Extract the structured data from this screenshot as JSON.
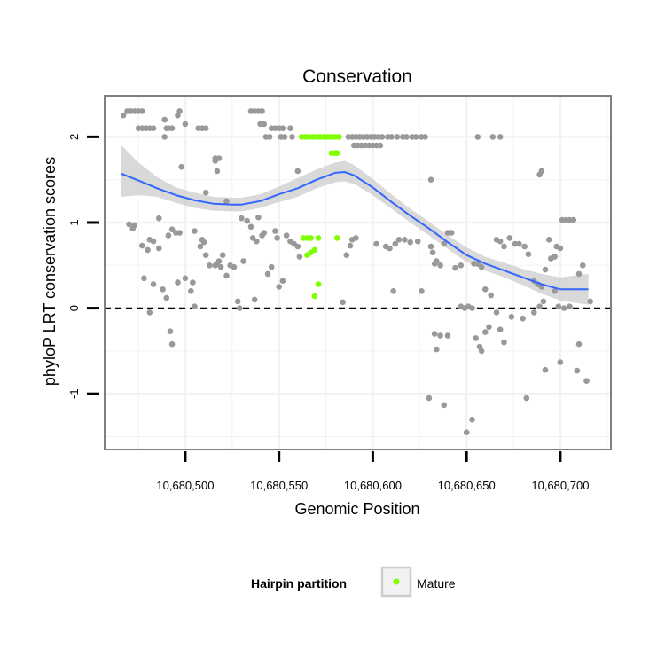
{
  "chart_data": {
    "type": "scatter",
    "title": "Conservation",
    "xlabel": "Genomic Position",
    "ylabel": "phyloP LRT conservation scores",
    "xlim": [
      10680457,
      10680727
    ],
    "ylim": [
      -1.65,
      2.48
    ],
    "x_ticks": [
      10680500,
      10680550,
      10680600,
      10680650,
      10680700
    ],
    "x_tick_labels": [
      "10,680,500",
      "10,680,550",
      "10,680,600",
      "10,680,650",
      "10,680,700"
    ],
    "y_ticks": [
      -1,
      0,
      1,
      2
    ],
    "y_tick_labels": [
      "-1",
      "0",
      "1",
      "2"
    ],
    "reference_line": {
      "y": 0,
      "style": "dashed"
    },
    "grid": true,
    "colors": {
      "other": "#999999",
      "mature": "#7fff00",
      "smooth": "#3366ff",
      "ribbon": "#cccccc",
      "panel_border": "#7f7f7f",
      "grid": "#f2f2f2"
    },
    "legend": {
      "position": "bottom",
      "title": "Hairpin partition",
      "entries": [
        {
          "label": "Mature",
          "color": "#7fff00"
        }
      ]
    },
    "series": [
      {
        "partition": "Other",
        "color": "#999999",
        "points": [
          [
            10680467,
            2.25
          ],
          [
            10680469,
            2.3
          ],
          [
            10680471,
            2.3
          ],
          [
            10680473,
            2.3
          ],
          [
            10680475,
            2.3
          ],
          [
            10680477,
            2.3
          ],
          [
            10680475,
            2.1
          ],
          [
            10680477,
            2.1
          ],
          [
            10680479,
            2.1
          ],
          [
            10680481,
            2.1
          ],
          [
            10680483,
            2.1
          ],
          [
            10680489,
            2.2
          ],
          [
            10680490,
            2.1
          ],
          [
            10680491,
            2.1
          ],
          [
            10680493,
            2.1
          ],
          [
            10680496,
            2.25
          ],
          [
            10680497,
            2.3
          ],
          [
            10680500,
            2.15
          ],
          [
            10680507,
            2.1
          ],
          [
            10680509,
            2.1
          ],
          [
            10680511,
            2.1
          ],
          [
            10680489,
            2.0
          ],
          [
            10680516,
            1.75
          ],
          [
            10680518,
            1.75
          ],
          [
            10680517,
            1.6
          ],
          [
            10680511,
            1.35
          ],
          [
            10680498,
            1.65
          ],
          [
            10680516,
            1.72
          ],
          [
            10680535,
            2.3
          ],
          [
            10680537,
            2.3
          ],
          [
            10680539,
            2.3
          ],
          [
            10680541,
            2.3
          ],
          [
            10680540,
            2.15
          ],
          [
            10680542,
            2.15
          ],
          [
            10680546,
            2.1
          ],
          [
            10680548,
            2.1
          ],
          [
            10680550,
            2.1
          ],
          [
            10680552,
            2.1
          ],
          [
            10680556,
            2.1
          ],
          [
            10680543,
            2.0
          ],
          [
            10680545,
            2.0
          ],
          [
            10680551,
            2.0
          ],
          [
            10680553,
            2.0
          ],
          [
            10680557,
            2.0
          ],
          [
            10680560,
            1.6
          ],
          [
            10680587,
            2.0
          ],
          [
            10680589,
            2.0
          ],
          [
            10680591,
            2.0
          ],
          [
            10680593,
            2.0
          ],
          [
            10680595,
            2.0
          ],
          [
            10680597,
            2.0
          ],
          [
            10680599,
            2.0
          ],
          [
            10680601,
            2.0
          ],
          [
            10680603,
            2.0
          ],
          [
            10680605,
            2.0
          ],
          [
            10680608,
            2.0
          ],
          [
            10680610,
            2.0
          ],
          [
            10680613,
            2.0
          ],
          [
            10680616,
            2.0
          ],
          [
            10680618,
            2.0
          ],
          [
            10680621,
            2.0
          ],
          [
            10680623,
            2.0
          ],
          [
            10680626,
            2.0
          ],
          [
            10680628,
            2.0
          ],
          [
            10680590,
            1.9
          ],
          [
            10680592,
            1.9
          ],
          [
            10680594,
            1.9
          ],
          [
            10680596,
            1.9
          ],
          [
            10680598,
            1.9
          ],
          [
            10680600,
            1.9
          ],
          [
            10680602,
            1.9
          ],
          [
            10680604,
            1.9
          ],
          [
            10680631,
            1.5
          ],
          [
            10680656,
            2.0
          ],
          [
            10680664,
            2.0
          ],
          [
            10680668,
            2.0
          ],
          [
            10680690,
            1.6
          ],
          [
            10680689,
            1.56
          ],
          [
            10680470,
            0.98
          ],
          [
            10680472,
            0.93
          ],
          [
            10680473,
            0.97
          ],
          [
            10680481,
            0.8
          ],
          [
            10680486,
            1.05
          ],
          [
            10680477,
            0.73
          ],
          [
            10680480,
            0.68
          ],
          [
            10680491,
            0.85
          ],
          [
            10680493,
            0.92
          ],
          [
            10680495,
            0.88
          ],
          [
            10680497,
            0.88
          ],
          [
            10680486,
            0.7
          ],
          [
            10680483,
            0.78
          ],
          [
            10680478,
            0.35
          ],
          [
            10680483,
            0.28
          ],
          [
            10680488,
            0.22
          ],
          [
            10680490,
            0.12
          ],
          [
            10680492,
            -0.27
          ],
          [
            10680493,
            -0.42
          ],
          [
            10680481,
            -0.05
          ],
          [
            10680496,
            0.3
          ],
          [
            10680500,
            0.35
          ],
          [
            10680503,
            0.2
          ],
          [
            10680504,
            0.3
          ],
          [
            10680505,
            0.9
          ],
          [
            10680508,
            0.72
          ],
          [
            10680509,
            0.8
          ],
          [
            10680510,
            0.77
          ],
          [
            10680511,
            0.62
          ],
          [
            10680513,
            0.5
          ],
          [
            10680505,
            0.02
          ],
          [
            10680516,
            0.5
          ],
          [
            10680517,
            0.52
          ],
          [
            10680518,
            0.55
          ],
          [
            10680519,
            0.48
          ],
          [
            10680520,
            0.62
          ],
          [
            10680522,
            0.38
          ],
          [
            10680524,
            0.5
          ],
          [
            10680526,
            0.48
          ],
          [
            10680528,
            0.08
          ],
          [
            10680529,
            0.0
          ],
          [
            10680530,
            1.05
          ],
          [
            10680531,
            0.55
          ],
          [
            10680533,
            1.02
          ],
          [
            10680535,
            0.95
          ],
          [
            10680536,
            0.82
          ],
          [
            10680538,
            0.78
          ],
          [
            10680539,
            1.06
          ],
          [
            10680541,
            0.85
          ],
          [
            10680542,
            0.88
          ],
          [
            10680544,
            0.4
          ],
          [
            10680546,
            0.48
          ],
          [
            10680548,
            0.9
          ],
          [
            10680549,
            0.82
          ],
          [
            10680550,
            0.25
          ],
          [
            10680552,
            0.32
          ],
          [
            10680554,
            0.85
          ],
          [
            10680556,
            0.78
          ],
          [
            10680558,
            0.75
          ],
          [
            10680560,
            0.72
          ],
          [
            10680561,
            0.6
          ],
          [
            10680537,
            0.1
          ],
          [
            10680522,
            1.25
          ],
          [
            10680586,
            0.62
          ],
          [
            10680588,
            0.73
          ],
          [
            10680589,
            0.8
          ],
          [
            10680591,
            0.82
          ],
          [
            10680584,
            0.07
          ],
          [
            10680602,
            0.75
          ],
          [
            10680607,
            0.72
          ],
          [
            10680609,
            0.7
          ],
          [
            10680612,
            0.75
          ],
          [
            10680614,
            0.8
          ],
          [
            10680617,
            0.8
          ],
          [
            10680620,
            0.77
          ],
          [
            10680624,
            0.78
          ],
          [
            10680611,
            0.2
          ],
          [
            10680626,
            0.2
          ],
          [
            10680631,
            0.72
          ],
          [
            10680632,
            0.65
          ],
          [
            10680633,
            0.52
          ],
          [
            10680634,
            0.55
          ],
          [
            10680636,
            0.5
          ],
          [
            10680638,
            0.75
          ],
          [
            10680640,
            0.88
          ],
          [
            10680642,
            0.88
          ],
          [
            10680644,
            0.47
          ],
          [
            10680647,
            0.5
          ],
          [
            10680647,
            0.02
          ],
          [
            10680649,
            0.0
          ],
          [
            10680651,
            0.02
          ],
          [
            10680653,
            0.0
          ],
          [
            10680654,
            0.52
          ],
          [
            10680656,
            0.52
          ],
          [
            10680658,
            0.48
          ],
          [
            10680660,
            0.22
          ],
          [
            10680663,
            0.15
          ],
          [
            10680633,
            -0.3
          ],
          [
            10680636,
            -0.32
          ],
          [
            10680640,
            -0.32
          ],
          [
            10680634,
            -0.48
          ],
          [
            10680630,
            -1.05
          ],
          [
            10680638,
            -1.13
          ],
          [
            10680650,
            -1.45
          ],
          [
            10680653,
            -1.3
          ],
          [
            10680655,
            -0.35
          ],
          [
            10680657,
            -0.45
          ],
          [
            10680658,
            -0.5
          ],
          [
            10680660,
            -0.28
          ],
          [
            10680662,
            -0.22
          ],
          [
            10680666,
            -0.05
          ],
          [
            10680668,
            -0.25
          ],
          [
            10680670,
            -0.4
          ],
          [
            10680674,
            -0.1
          ],
          [
            10680680,
            -0.12
          ],
          [
            10680682,
            -1.05
          ],
          [
            10680666,
            0.8
          ],
          [
            10680668,
            0.78
          ],
          [
            10680670,
            0.72
          ],
          [
            10680673,
            0.82
          ],
          [
            10680676,
            0.75
          ],
          [
            10680678,
            0.75
          ],
          [
            10680681,
            0.72
          ],
          [
            10680683,
            0.63
          ],
          [
            10680686,
            0.32
          ],
          [
            10680688,
            0.28
          ],
          [
            10680690,
            0.25
          ],
          [
            10680692,
            0.45
          ],
          [
            10680694,
            0.8
          ],
          [
            10680695,
            0.58
          ],
          [
            10680697,
            0.6
          ],
          [
            10680698,
            0.72
          ],
          [
            10680700,
            0.7
          ],
          [
            10680701,
            1.03
          ],
          [
            10680703,
            1.03
          ],
          [
            10680705,
            1.03
          ],
          [
            10680707,
            1.03
          ],
          [
            10680689,
            0.02
          ],
          [
            10680691,
            0.08
          ],
          [
            10680697,
            0.2
          ],
          [
            10680699,
            0.02
          ],
          [
            10680702,
            0.0
          ],
          [
            10680705,
            0.02
          ],
          [
            10680710,
            0.4
          ],
          [
            10680712,
            0.5
          ],
          [
            10680716,
            0.08
          ],
          [
            10680686,
            -0.05
          ],
          [
            10680692,
            -0.72
          ],
          [
            10680700,
            -0.63
          ],
          [
            10680709,
            -0.73
          ],
          [
            10680714,
            -0.85
          ],
          [
            10680710,
            -0.42
          ]
        ]
      },
      {
        "partition": "Mature",
        "color": "#7fff00",
        "points": [
          [
            10680562,
            2.0
          ],
          [
            10680564,
            2.0
          ],
          [
            10680566,
            2.0
          ],
          [
            10680568,
            2.0
          ],
          [
            10680570,
            2.0
          ],
          [
            10680572,
            2.0
          ],
          [
            10680574,
            2.0
          ],
          [
            10680576,
            2.0
          ],
          [
            10680578,
            2.0
          ],
          [
            10680580,
            2.0
          ],
          [
            10680582,
            2.0
          ],
          [
            10680578,
            1.81
          ],
          [
            10680580,
            1.81
          ],
          [
            10680581,
            1.81
          ],
          [
            10680563,
            0.82
          ],
          [
            10680565,
            0.82
          ],
          [
            10680567,
            0.82
          ],
          [
            10680571,
            0.82
          ],
          [
            10680581,
            0.82
          ],
          [
            10680565,
            0.62
          ],
          [
            10680567,
            0.65
          ],
          [
            10680569,
            0.68
          ],
          [
            10680571,
            0.28
          ],
          [
            10680569,
            0.14
          ]
        ]
      }
    ],
    "smooth": {
      "method": "loess",
      "x": [
        10680466,
        10680475,
        10680485,
        10680495,
        10680505,
        10680515,
        10680525,
        10680530,
        10680540,
        10680550,
        10680560,
        10680570,
        10680580,
        10680585,
        10680590,
        10680600,
        10680610,
        10680620,
        10680630,
        10680640,
        10680650,
        10680660,
        10680670,
        10680680,
        10680690,
        10680700,
        10680715
      ],
      "y": [
        1.57,
        1.49,
        1.4,
        1.32,
        1.26,
        1.22,
        1.21,
        1.21,
        1.25,
        1.33,
        1.4,
        1.5,
        1.58,
        1.59,
        1.55,
        1.41,
        1.24,
        1.08,
        0.93,
        0.77,
        0.62,
        0.52,
        0.44,
        0.36,
        0.28,
        0.22,
        0.22
      ],
      "lo": [
        1.3,
        1.32,
        1.3,
        1.23,
        1.17,
        1.14,
        1.13,
        1.13,
        1.17,
        1.24,
        1.3,
        1.4,
        1.47,
        1.48,
        1.45,
        1.32,
        1.16,
        1.0,
        0.85,
        0.69,
        0.54,
        0.44,
        0.36,
        0.27,
        0.17,
        0.09,
        0.04
      ],
      "hi": [
        1.9,
        1.7,
        1.53,
        1.41,
        1.35,
        1.3,
        1.29,
        1.29,
        1.33,
        1.42,
        1.52,
        1.62,
        1.7,
        1.72,
        1.67,
        1.51,
        1.33,
        1.16,
        1.01,
        0.85,
        0.71,
        0.6,
        0.53,
        0.46,
        0.4,
        0.36,
        0.4
      ]
    }
  }
}
